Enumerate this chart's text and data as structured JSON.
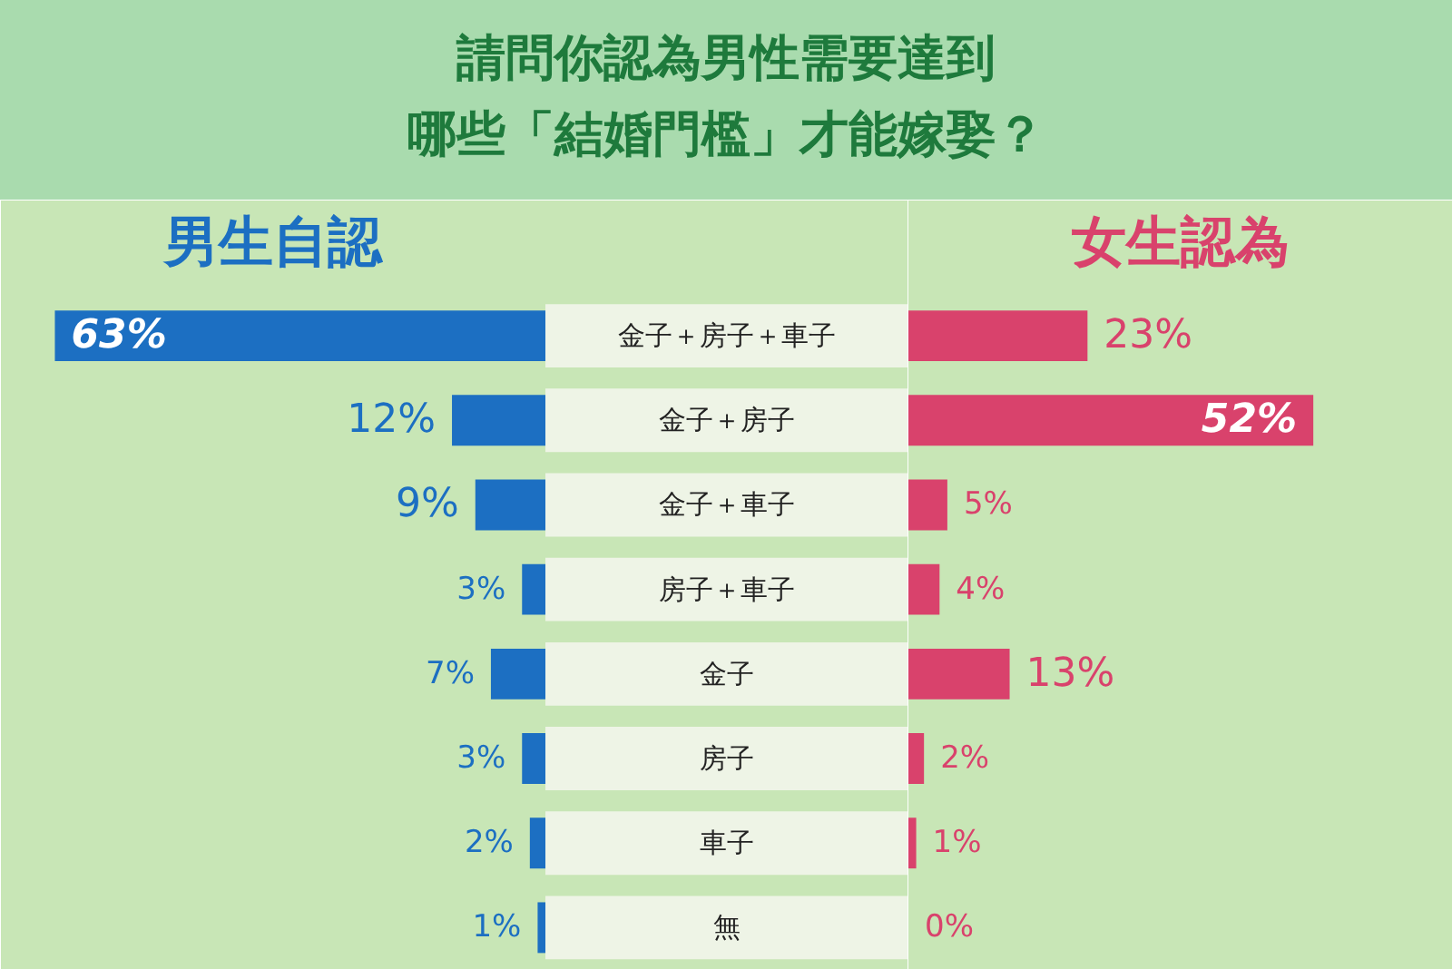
{
  "chart_data": [
    {
      "type": "bar",
      "orientation": "horizontal",
      "title": "請問你認為男性需要達到哪些「結婚門檻」才能嫁娶？",
      "subtitle": "男生自認",
      "categories": [
        "金子＋房子＋車子",
        "金子＋房子",
        "金子＋車子",
        "房子＋車子",
        "金子",
        "房子",
        "車子",
        "無"
      ],
      "series": [
        {
          "color": "#1c6fc2",
          "values": [
            63,
            12,
            9,
            3,
            7,
            3,
            2,
            1
          ],
          "value_labels": [
            "63%",
            "12%",
            "9%",
            "3%",
            "7%",
            "3%",
            "2%",
            "1%"
          ]
        }
      ],
      "tick_labels": "y",
      "grid": false
    },
    {
      "type": "bar",
      "orientation": "horizontal",
      "title": "女生認為",
      "series": [
        {
          "color": "#d9426c",
          "values": [
            23,
            52,
            5,
            4,
            13,
            2,
            1,
            0
          ],
          "value_labels": [
            "23%",
            "52%",
            "5%",
            "4%",
            "13%",
            "2%",
            "1%",
            "0%"
          ]
        }
      ],
      "tick_labels": false,
      "grid": false
    }
  ]
}
